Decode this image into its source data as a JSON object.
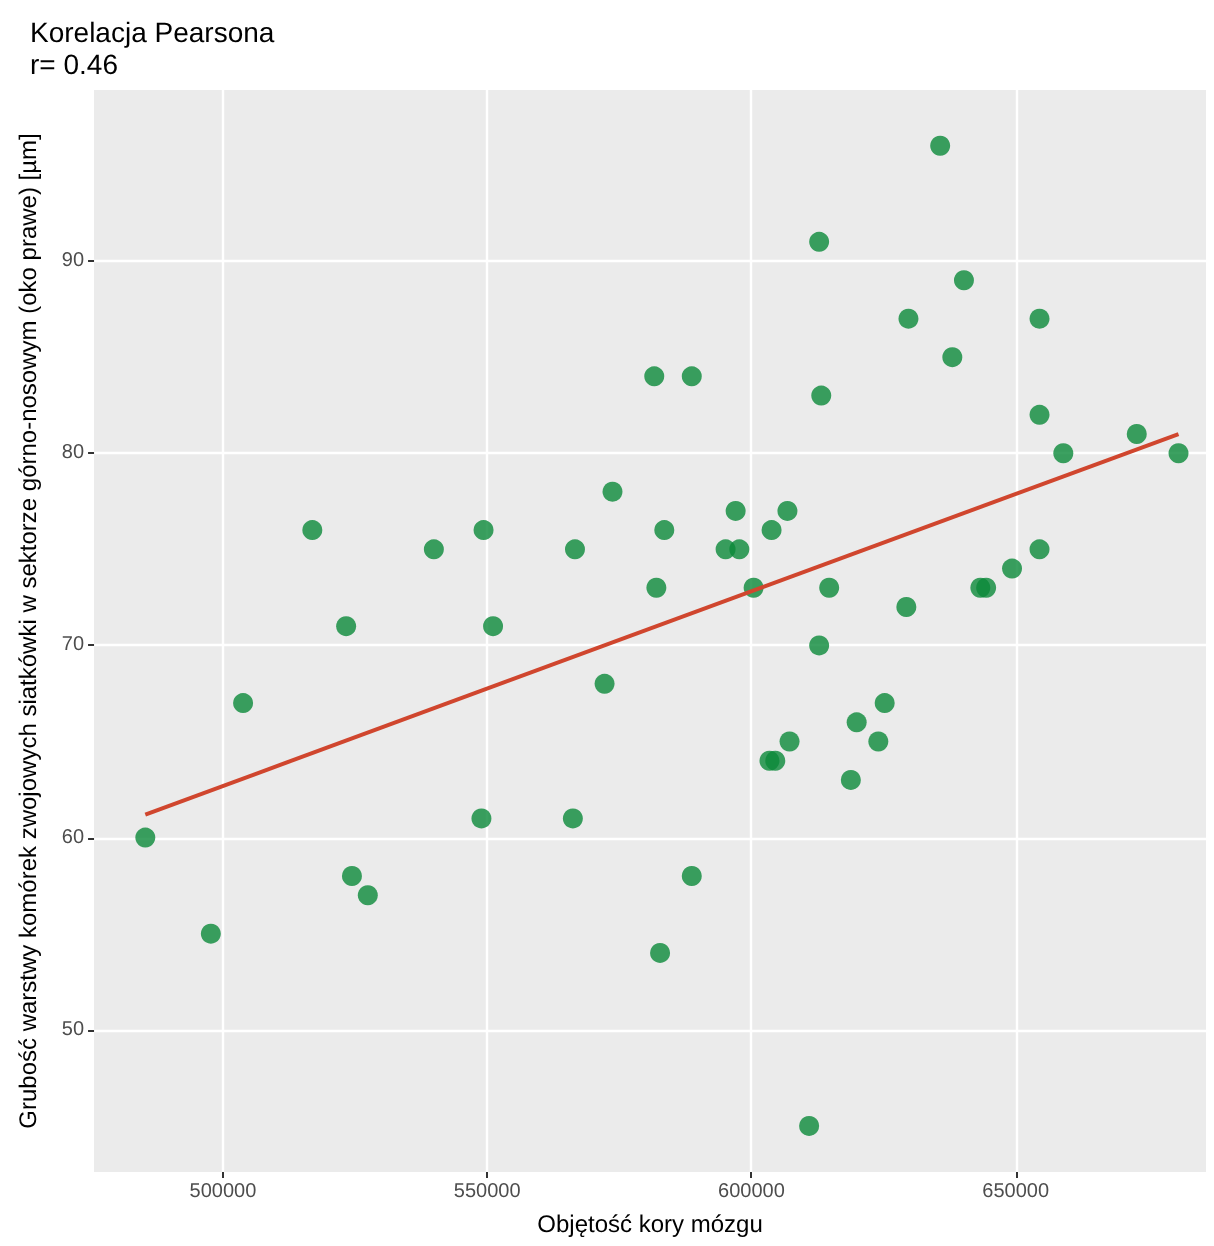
{
  "chart_data": {
    "type": "scatter",
    "title": "Korelacja Pearsona",
    "subtitle": "r= 0.46",
    "xlabel": "Objętość kory mózgu",
    "ylabel": "Grubość warstwy komórek zwojowych siatkówki w sektorze górno-nosowym (oko prawe) [µm]",
    "xlim": [
      475600,
      686000
    ],
    "xticks": [
      500000,
      550000,
      600000,
      650000
    ],
    "ylim": [
      42.6,
      98.9
    ],
    "yticks": [
      50,
      60,
      70,
      80,
      90
    ],
    "grid": true,
    "series": [
      {
        "marker": "circle",
        "color": "#0b8a3a",
        "x": [
          485300,
          497700,
          503800,
          516900,
          523300,
          524400,
          527400,
          539900,
          548900,
          549300,
          551100,
          566200,
          566600,
          572200,
          573700,
          581600,
          582000,
          582700,
          583500,
          588700,
          588700,
          595100,
          597000,
          597700,
          600400,
          603400,
          603800,
          604500,
          606800,
          607200,
          610900,
          612800,
          612800,
          613200,
          614700,
          618800,
          619900,
          624000,
          625200,
          629300,
          629700,
          635700,
          638000,
          640200,
          643300,
          644400,
          649300,
          654500,
          654500,
          654500,
          659000,
          672900,
          680800
        ],
        "values": [
          60,
          55,
          67,
          76,
          71,
          58,
          57,
          75,
          61,
          76,
          71,
          61,
          75,
          68,
          78,
          84,
          73,
          54,
          76,
          84,
          58,
          75,
          77,
          75,
          73,
          64,
          76,
          64,
          77,
          65,
          45,
          70,
          91,
          83,
          73,
          63,
          66,
          65,
          67,
          72,
          87,
          96,
          85,
          89,
          73,
          73,
          74,
          87,
          82,
          75,
          80,
          81,
          80
        ]
      },
      {
        "type": "line",
        "color": "#d0462e",
        "x": [
          485300,
          680800
        ],
        "values": [
          61.2,
          81.0
        ]
      }
    ]
  }
}
